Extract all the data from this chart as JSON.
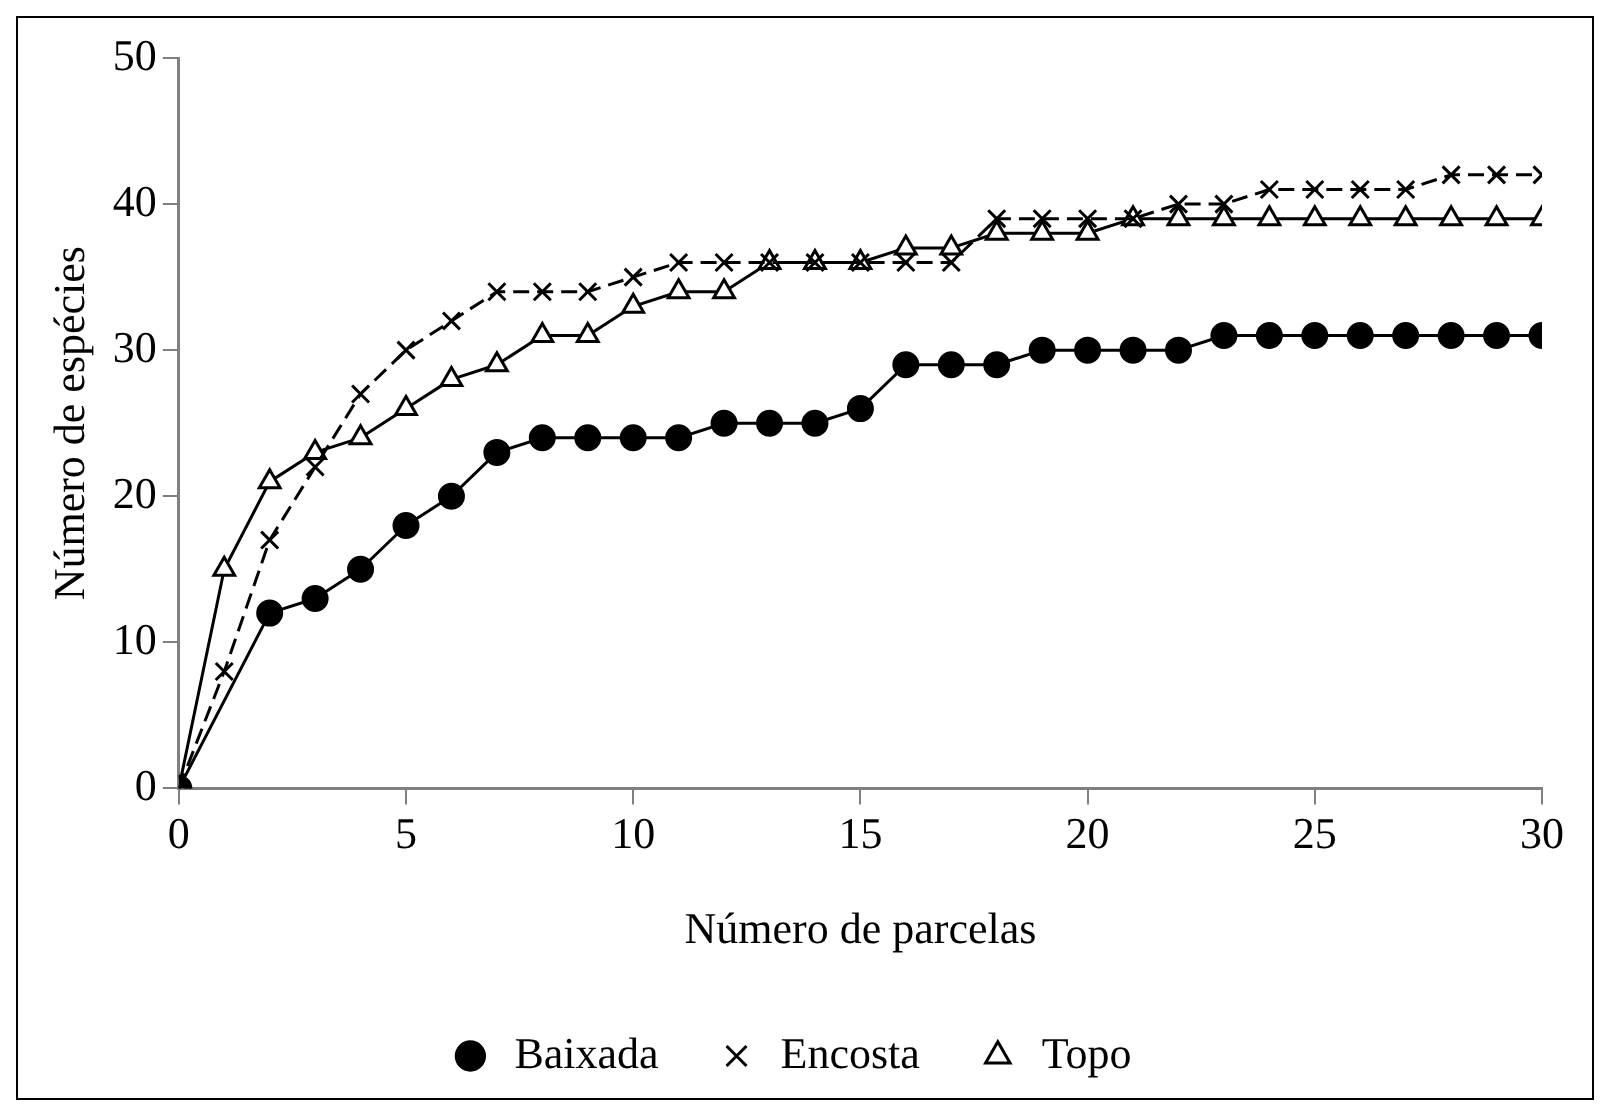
{
  "chart_data": {
    "type": "line",
    "xlabel": "Número de parcelas",
    "ylabel": "Número de espécies",
    "xlim": [
      0,
      30
    ],
    "xticks": [
      0,
      5,
      10,
      15,
      20,
      25,
      30
    ],
    "ylim": [
      0,
      50
    ],
    "yticks": [
      0,
      10,
      20,
      30,
      40,
      50
    ],
    "grid": false,
    "legend": "bottom",
    "series": [
      {
        "name": "Baixada",
        "color": "#000000",
        "marker": "circle",
        "line_style": "solid",
        "x": [
          0,
          2,
          3,
          4,
          5,
          6,
          7,
          8,
          9,
          10,
          11,
          12,
          13,
          14,
          15,
          16,
          17,
          18,
          19,
          20,
          21,
          22,
          23,
          24,
          25,
          26,
          27,
          28,
          29,
          30
        ],
        "values": [
          0,
          12,
          13,
          15,
          18,
          20,
          23,
          24,
          24,
          24,
          24,
          25,
          25,
          25,
          26,
          29,
          29,
          29,
          30,
          30,
          30,
          30,
          31,
          31,
          31,
          31,
          31,
          31,
          31,
          31
        ]
      },
      {
        "name": "Encosta",
        "color": "#000000",
        "marker": "cross",
        "line_style": "dashed",
        "x": [
          0,
          1,
          2,
          3,
          4,
          5,
          6,
          7,
          8,
          9,
          10,
          11,
          12,
          13,
          14,
          15,
          16,
          17,
          18,
          19,
          20,
          21,
          22,
          23,
          24,
          25,
          26,
          27,
          28,
          29,
          30
        ],
        "values": [
          0,
          8,
          17,
          22,
          27,
          30,
          32,
          34,
          34,
          34,
          35,
          36,
          36,
          36,
          36,
          36,
          36,
          36,
          39,
          39,
          39,
          39,
          40,
          40,
          41,
          41,
          41,
          41,
          42,
          42,
          42
        ]
      },
      {
        "name": "Topo",
        "color": "#000000",
        "marker": "triangle",
        "line_style": "solid",
        "x": [
          0,
          1,
          2,
          3,
          4,
          5,
          6,
          7,
          8,
          9,
          10,
          11,
          12,
          13,
          14,
          15,
          16,
          17,
          18,
          19,
          20,
          21,
          22,
          23,
          24,
          25,
          26,
          27,
          28,
          29,
          30
        ],
        "values": [
          0,
          15,
          21,
          23,
          24,
          26,
          28,
          29,
          31,
          31,
          33,
          34,
          34,
          36,
          36,
          36,
          37,
          37,
          38,
          38,
          38,
          39,
          39,
          39,
          39,
          39,
          39,
          39,
          39,
          39,
          39
        ]
      }
    ]
  }
}
